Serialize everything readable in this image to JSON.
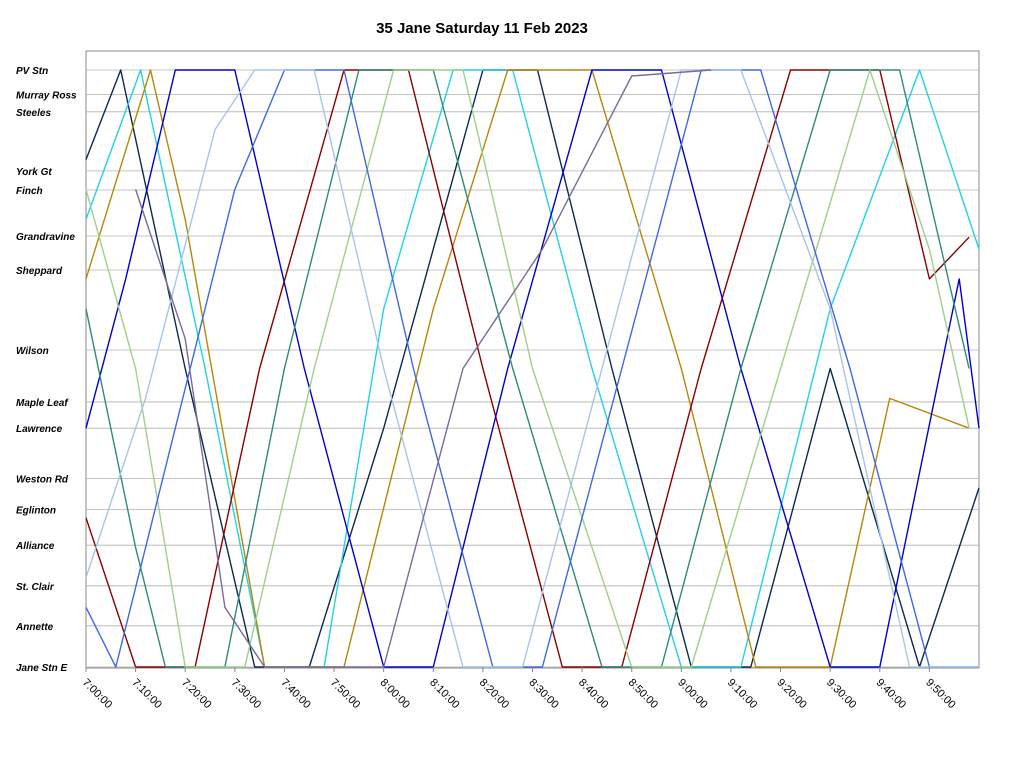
{
  "chart_data": {
    "type": "line",
    "title": "35 Jane Saturday 11 Feb 2023",
    "x_ticks": [
      "7:00:00",
      "7:10:00",
      "7:20:00",
      "7:30:00",
      "7:40:00",
      "7:50:00",
      "8:00:00",
      "8:10:00",
      "8:20:00",
      "8:30:00",
      "8:40:00",
      "8:50:00",
      "9:00:00",
      "9:10:00",
      "9:20:00",
      "9:30:00",
      "9:40:00",
      "9:50:00"
    ],
    "xlim": [
      "7:00:00",
      "10:00:00"
    ],
    "stops": [
      {
        "name": "PV Stn",
        "pos": 0.0
      },
      {
        "name": "Murray Ross",
        "pos": 0.041
      },
      {
        "name": "Steeles",
        "pos": 0.07
      },
      {
        "name": "York Gt",
        "pos": 0.169
      },
      {
        "name": "Finch",
        "pos": 0.201
      },
      {
        "name": "Grandravine",
        "pos": 0.278
      },
      {
        "name": "Sheppard",
        "pos": 0.335
      },
      {
        "name": "Wilson",
        "pos": 0.469
      },
      {
        "name": "Maple Leaf",
        "pos": 0.556
      },
      {
        "name": "Lawrence",
        "pos": 0.6
      },
      {
        "name": "Weston Rd",
        "pos": 0.684
      },
      {
        "name": "Eglinton",
        "pos": 0.736
      },
      {
        "name": "Alliance",
        "pos": 0.796
      },
      {
        "name": "St. Clair",
        "pos": 0.864
      },
      {
        "name": "Annette",
        "pos": 0.931
      },
      {
        "name": "Jane Stn E",
        "pos": 1.0
      }
    ],
    "grid": true,
    "legend": "none",
    "series": [
      {
        "color": "#0a2a50",
        "points": [
          [
            0,
            0.15
          ],
          [
            7,
            0
          ],
          [
            20,
            0.5
          ],
          [
            34,
            1.0
          ],
          [
            45,
            1.0
          ],
          [
            60,
            0.6
          ],
          [
            80,
            0
          ],
          [
            91,
            0
          ],
          [
            106,
            0.5
          ],
          [
            122,
            1.0
          ],
          [
            134,
            1.0
          ],
          [
            150,
            0.5
          ],
          [
            168,
            1.0
          ],
          [
            180,
            0.7
          ]
        ]
      },
      {
        "color": "#21d2e8",
        "points": [
          [
            0,
            0.25
          ],
          [
            11,
            0
          ],
          [
            24,
            0.5
          ],
          [
            36,
            1.0
          ],
          [
            48,
            1.0
          ],
          [
            60,
            0.4
          ],
          [
            74,
            0
          ],
          [
            86,
            0
          ],
          [
            102,
            0.5
          ],
          [
            120,
            1.0
          ],
          [
            132,
            1.0
          ],
          [
            150,
            0.4
          ],
          [
            168,
            0
          ],
          [
            180,
            0.3
          ]
        ]
      },
      {
        "color": "#b8860b",
        "points": [
          [
            0,
            0.35
          ],
          [
            13,
            0
          ],
          [
            20,
            0.25
          ],
          [
            36,
            1.0
          ],
          [
            52,
            1.0
          ],
          [
            70,
            0.4
          ],
          [
            85,
            0
          ],
          [
            102,
            0
          ],
          [
            120,
            0.5
          ],
          [
            135,
            1.0
          ],
          [
            150,
            1.0
          ],
          [
            162,
            0.55
          ],
          [
            178,
            0.6
          ]
        ]
      },
      {
        "color": "#8b0000",
        "points": [
          [
            0,
            0.75
          ],
          [
            10,
            1.0
          ],
          [
            22,
            1.0
          ],
          [
            35,
            0.5
          ],
          [
            52,
            0
          ],
          [
            65,
            0
          ],
          [
            80,
            0.5
          ],
          [
            96,
            1.0
          ],
          [
            108,
            1.0
          ],
          [
            124,
            0.5
          ],
          [
            142,
            0
          ],
          [
            160,
            0
          ],
          [
            170,
            0.35
          ],
          [
            178,
            0.28
          ]
        ]
      },
      {
        "color": "#0000cd",
        "points": [
          [
            0,
            0.6
          ],
          [
            8,
            0.35
          ],
          [
            18,
            0
          ],
          [
            30,
            0
          ],
          [
            44,
            0.5
          ],
          [
            60,
            1.0
          ],
          [
            70,
            1.0
          ],
          [
            85,
            0.5
          ],
          [
            102,
            0
          ],
          [
            116,
            0
          ],
          [
            132,
            0.5
          ],
          [
            150,
            1.0
          ],
          [
            160,
            1.0
          ],
          [
            176,
            0.35
          ],
          [
            180,
            0.6
          ]
        ]
      },
      {
        "color": "#2e8b7a",
        "points": [
          [
            0,
            0.4
          ],
          [
            10,
            0.8
          ],
          [
            16,
            1.0
          ],
          [
            28,
            1.0
          ],
          [
            40,
            0.5
          ],
          [
            55,
            0
          ],
          [
            70,
            0
          ],
          [
            86,
            0.5
          ],
          [
            104,
            1.0
          ],
          [
            116,
            1.0
          ],
          [
            132,
            0.5
          ],
          [
            150,
            0
          ],
          [
            164,
            0
          ],
          [
            178,
            0.5
          ]
        ]
      },
      {
        "color": "#9bd18a",
        "points": [
          [
            0,
            0.2
          ],
          [
            10,
            0.5
          ],
          [
            20,
            1.0
          ],
          [
            32,
            1.0
          ],
          [
            46,
            0.5
          ],
          [
            62,
            0
          ],
          [
            76,
            0
          ],
          [
            90,
            0.5
          ],
          [
            110,
            1.0
          ],
          [
            122,
            1.0
          ],
          [
            140,
            0.5
          ],
          [
            158,
            0
          ],
          [
            170,
            0.3
          ],
          [
            178,
            0.6
          ]
        ]
      },
      {
        "color": "#4169e1",
        "points": [
          [
            0,
            0.9
          ],
          [
            6,
            1.0
          ],
          [
            18,
            0.6
          ],
          [
            30,
            0.2
          ],
          [
            40,
            0
          ],
          [
            52,
            0
          ],
          [
            66,
            0.5
          ],
          [
            82,
            1.0
          ],
          [
            92,
            1.0
          ],
          [
            108,
            0.5
          ],
          [
            124,
            0
          ],
          [
            136,
            0
          ],
          [
            154,
            0.5
          ],
          [
            170,
            1.0
          ],
          [
            180,
            1.0
          ]
        ]
      },
      {
        "color": "#a7c5e8",
        "points": [
          [
            0,
            0.85
          ],
          [
            12,
            0.55
          ],
          [
            26,
            0.1
          ],
          [
            34,
            0
          ],
          [
            46,
            0
          ],
          [
            60,
            0.5
          ],
          [
            76,
            1.0
          ],
          [
            88,
            1.0
          ],
          [
            104,
            0.5
          ],
          [
            120,
            0
          ],
          [
            132,
            0
          ],
          [
            150,
            0.4
          ],
          [
            166,
            1.0
          ],
          [
            180,
            1.0
          ]
        ]
      },
      {
        "color": "#7a6a9a",
        "points": [
          [
            10,
            0.2
          ],
          [
            20,
            0.45
          ],
          [
            28,
            0.9
          ],
          [
            36,
            1.0
          ],
          [
            46,
            1.0
          ],
          [
            60,
            1.0
          ],
          [
            76,
            0.5
          ],
          [
            92,
            0.3
          ],
          [
            110,
            0.01
          ],
          [
            126,
            0.0
          ]
        ]
      }
    ]
  }
}
